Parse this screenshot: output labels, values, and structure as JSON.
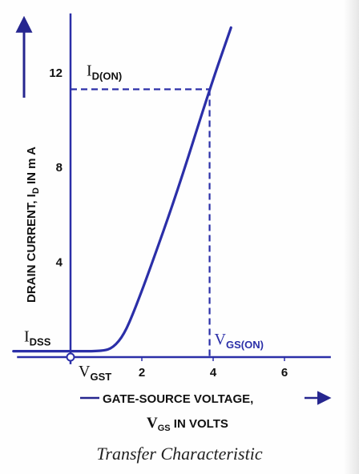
{
  "chart_data": {
    "type": "line",
    "caption": "Transfer Characteristic",
    "xlabel": {
      "line1": "GATE-SOURCE VOLTAGE,",
      "line2_symbol": "V",
      "line2_sub": "GS",
      "line2_tail": " IN VOLTS"
    },
    "ylabel": {
      "main": "DRAIN CURRENT, I",
      "sub": "D",
      "tail": " IN m A"
    },
    "x_ticks": [
      "2",
      "4",
      "6"
    ],
    "y_ticks": [
      "4",
      "8",
      "12"
    ],
    "xlim": [
      -1.5,
      7.3
    ],
    "ylim": [
      -0.3,
      14.5
    ],
    "series": [
      {
        "x": [
          -1.6,
          0,
          0.9,
          1.2,
          1.5,
          1.8,
          2.2,
          3.0,
          3.9,
          4.5
        ],
        "y": [
          0.25,
          0.25,
          0.25,
          0.4,
          0.95,
          2.0,
          3.6,
          7.0,
          11.3,
          13.9
        ]
      }
    ],
    "annotations": {
      "idon": {
        "main": "I",
        "sub": "D(ON)",
        "x": 3.9,
        "y": 11.3
      },
      "vgson": {
        "main": "V",
        "sub": "GS(ON)"
      },
      "idss": {
        "main": "I",
        "sub": "DSS",
        "y": 0.25
      },
      "vgst": {
        "main": "V",
        "sub": "GST",
        "x": 0
      }
    },
    "colors": {
      "curve": "#2b2fa8",
      "text": "#111111",
      "axis_label": "#26268f"
    }
  }
}
